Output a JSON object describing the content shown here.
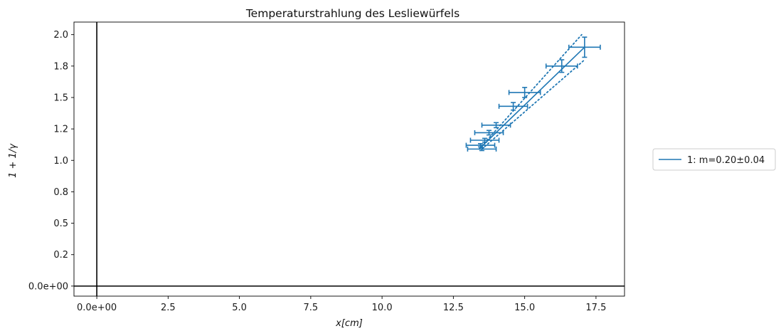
{
  "chart_data": {
    "type": "line",
    "title": "Temperaturstrahlung des Lesliewürfels",
    "xlabel": "x[cm]",
    "ylabel": "1 + 1/γ",
    "xlim": [
      -0.8,
      18.5
    ],
    "ylim": [
      -0.08,
      2.1
    ],
    "x_ticks": [
      {
        "value": 0,
        "label": "0.0e+00"
      },
      {
        "value": 2.5,
        "label": "2.5"
      },
      {
        "value": 5,
        "label": "5.0"
      },
      {
        "value": 7.5,
        "label": "7.5"
      },
      {
        "value": 10,
        "label": "10.0"
      },
      {
        "value": 12.5,
        "label": "12.5"
      },
      {
        "value": 15,
        "label": "15.0"
      },
      {
        "value": 17.5,
        "label": "17.5"
      }
    ],
    "y_ticks": [
      {
        "value": 0,
        "label": "0.0e+00"
      },
      {
        "value": 0.25,
        "label": "0.2"
      },
      {
        "value": 0.5,
        "label": "0.5"
      },
      {
        "value": 0.75,
        "label": "0.8"
      },
      {
        "value": 1.0,
        "label": "1.0"
      },
      {
        "value": 1.25,
        "label": "1.2"
      },
      {
        "value": 1.5,
        "label": "1.5"
      },
      {
        "value": 1.75,
        "label": "1.8"
      },
      {
        "value": 2.0,
        "label": "2.0"
      }
    ],
    "grid": false,
    "reference_lines": {
      "x": 0,
      "y": 0
    },
    "legend": {
      "placement": "right",
      "entries": [
        "1: m=0.20±0.04"
      ]
    },
    "series": [
      {
        "name": "1: m=0.20±0.04",
        "color": "#1f77b4",
        "points": [
          {
            "x": 13.5,
            "y": 1.09,
            "xerr": 0.5,
            "yerr": 0.012
          },
          {
            "x": 13.45,
            "y": 1.12,
            "xerr": 0.5,
            "yerr": 0.013
          },
          {
            "x": 13.6,
            "y": 1.16,
            "xerr": 0.5,
            "yerr": 0.015
          },
          {
            "x": 13.75,
            "y": 1.22,
            "xerr": 0.5,
            "yerr": 0.018
          },
          {
            "x": 14.0,
            "y": 1.28,
            "xerr": 0.5,
            "yerr": 0.02
          },
          {
            "x": 14.6,
            "y": 1.43,
            "xerr": 0.5,
            "yerr": 0.03
          },
          {
            "x": 15.0,
            "y": 1.54,
            "xerr": 0.55,
            "yerr": 0.04
          },
          {
            "x": 16.3,
            "y": 1.75,
            "xerr": 0.55,
            "yerr": 0.05
          },
          {
            "x": 17.1,
            "y": 1.9,
            "xerr": 0.55,
            "yerr": 0.08
          }
        ],
        "fit_line": [
          [
            13.4,
            1.09
          ],
          [
            17.1,
            1.9
          ]
        ],
        "fit_bounds": [
          [
            [
              13.4,
              1.09
            ],
            [
              17.0,
              2.0
            ]
          ],
          [
            [
              13.5,
              1.09
            ],
            [
              17.1,
              1.8
            ]
          ]
        ]
      }
    ]
  }
}
